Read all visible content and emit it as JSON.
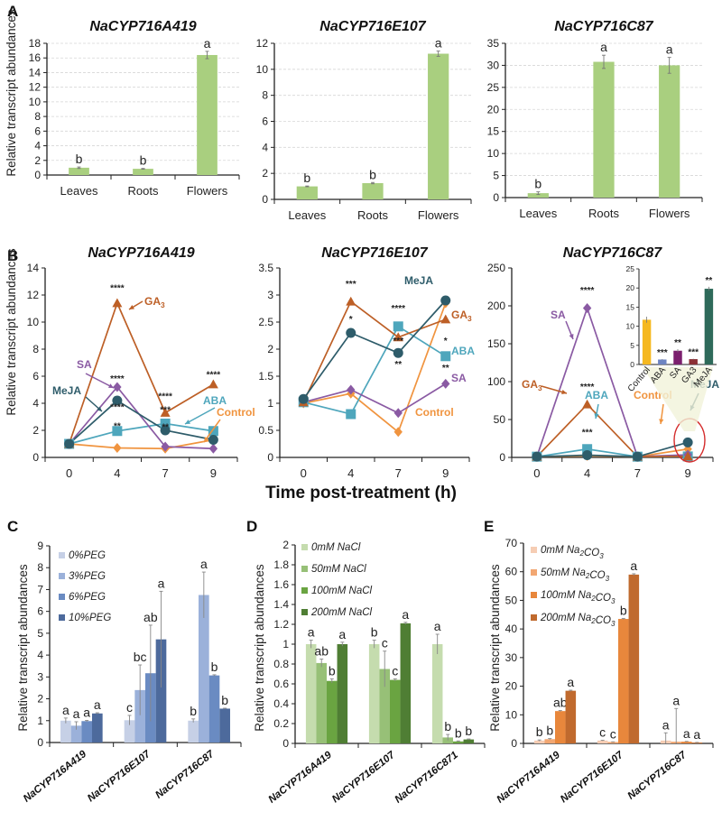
{
  "figure": {
    "panel_letters": [
      "A",
      "B",
      "C",
      "D",
      "E"
    ],
    "b_shared_xlabel": "Time post-treatment (h)",
    "ylabel": "Relative transcript abundances"
  },
  "chart_data": [
    {
      "id": "A1",
      "panel": "A",
      "type": "bar",
      "title": "NaCYP716A419",
      "ylabel": "Relative transcript abundances",
      "categories": [
        "Leaves",
        "Roots",
        "Flowers"
      ],
      "values": [
        1.0,
        0.85,
        16.4
      ],
      "errors": [
        0.1,
        0.05,
        0.5
      ],
      "letters": [
        "b",
        "b",
        "a"
      ],
      "ylim": [
        0,
        18
      ],
      "yticks": [
        0,
        2,
        4,
        6,
        8,
        10,
        12,
        14,
        16,
        18
      ],
      "grid": true,
      "color": "#a9cf7f"
    },
    {
      "id": "A2",
      "panel": "A",
      "type": "bar",
      "title": "NaCYP716E107",
      "categories": [
        "Leaves",
        "Roots",
        "Flowers"
      ],
      "values": [
        1.0,
        1.25,
        11.2
      ],
      "errors": [
        0.03,
        0.05,
        0.2
      ],
      "letters": [
        "b",
        "b",
        "a"
      ],
      "ylim": [
        0,
        12
      ],
      "yticks": [
        0,
        2,
        4,
        6,
        8,
        10,
        12
      ],
      "grid": true,
      "color": "#a9cf7f"
    },
    {
      "id": "A3",
      "panel": "A",
      "type": "bar",
      "title": "NaCYP716C87",
      "categories": [
        "Leaves",
        "Roots",
        "Flowers"
      ],
      "values": [
        1.0,
        30.8,
        30.0
      ],
      "errors": [
        0.3,
        1.5,
        1.8
      ],
      "letters": [
        "b",
        "a",
        "a"
      ],
      "ylim": [
        0,
        35
      ],
      "yticks": [
        0,
        5,
        10,
        15,
        20,
        25,
        30,
        35
      ],
      "grid": true,
      "color": "#a9cf7f"
    },
    {
      "id": "B1",
      "panel": "B",
      "type": "line",
      "title": "NaCYP716A419",
      "ylabel": "Relative transcript abundances",
      "x": [
        "0",
        "4",
        "7",
        "9"
      ],
      "ylim": [
        0,
        14
      ],
      "yticks": [
        0,
        2,
        4,
        6,
        8,
        10,
        12,
        14
      ],
      "series": [
        {
          "name": "Control",
          "color": "#f0943f",
          "marker": "diamond",
          "values": [
            1.0,
            0.7,
            0.65,
            1.3
          ]
        },
        {
          "name": "ABA",
          "color": "#4ea6bc",
          "marker": "square",
          "values": [
            1.0,
            1.95,
            2.5,
            1.95
          ]
        },
        {
          "name": "SA",
          "color": "#8a5aa3",
          "marker": "diamond",
          "values": [
            1.0,
            5.2,
            0.8,
            0.65
          ]
        },
        {
          "name": "GA3",
          "color": "#bd5f26",
          "marker": "triangle",
          "values": [
            1.0,
            11.4,
            3.3,
            5.4
          ]
        },
        {
          "name": "MeJA",
          "color": "#2e5c6a",
          "marker": "circle",
          "values": [
            1.0,
            4.2,
            2.0,
            1.3
          ]
        }
      ],
      "annotations": [
        {
          "x": "4",
          "y": 12.5,
          "text": "****"
        },
        {
          "x": "4",
          "y": 5.8,
          "text": "****"
        },
        {
          "x": "4",
          "y": 3.7,
          "text": "****"
        },
        {
          "x": "4",
          "y": 2.3,
          "text": "**"
        },
        {
          "x": "7",
          "y": 4.5,
          "text": "****"
        },
        {
          "x": "7",
          "y": 3.5,
          "text": "***"
        },
        {
          "x": "7",
          "y": 2.25,
          "text": "**"
        },
        {
          "x": "9",
          "y": 6.1,
          "text": "****"
        }
      ],
      "series_labels": [
        {
          "name": "GA₃",
          "color": "#bd5f26"
        },
        {
          "name": "SA",
          "color": "#8a5aa3"
        },
        {
          "name": "MeJA",
          "color": "#2e5c6a"
        },
        {
          "name": "ABA",
          "color": "#4ea6bc"
        },
        {
          "name": "Control",
          "color": "#f0943f"
        }
      ]
    },
    {
      "id": "B2",
      "panel": "B",
      "type": "line",
      "title": "NaCYP716E107",
      "x": [
        "0",
        "4",
        "7",
        "9"
      ],
      "ylim": [
        0,
        3.5
      ],
      "yticks": [
        0,
        0.5,
        1,
        1.5,
        2,
        2.5,
        3,
        3.5
      ],
      "series": [
        {
          "name": "Control",
          "color": "#f0943f",
          "marker": "diamond",
          "values": [
            1.0,
            1.18,
            0.47,
            2.85
          ]
        },
        {
          "name": "ABA",
          "color": "#4ea6bc",
          "marker": "square",
          "values": [
            1.02,
            0.8,
            2.42,
            1.87
          ]
        },
        {
          "name": "SA",
          "color": "#8a5aa3",
          "marker": "diamond",
          "values": [
            1.02,
            1.25,
            0.82,
            1.36
          ]
        },
        {
          "name": "GA3",
          "color": "#bd5f26",
          "marker": "triangle",
          "values": [
            1.02,
            2.88,
            2.22,
            2.55
          ]
        },
        {
          "name": "MeJA",
          "color": "#2e5c6a",
          "marker": "circle",
          "values": [
            1.08,
            2.3,
            1.93,
            2.9
          ]
        }
      ],
      "annotations": [
        {
          "x": "4",
          "y": 3.2,
          "text": "***"
        },
        {
          "x": "4",
          "y": 2.55,
          "text": "*"
        },
        {
          "x": "7",
          "y": 2.75,
          "text": "****"
        },
        {
          "x": "7",
          "y": 2.15,
          "text": "***"
        },
        {
          "x": "7",
          "y": 1.72,
          "text": "**"
        },
        {
          "x": "9",
          "y": 2.15,
          "text": "*"
        },
        {
          "x": "9",
          "y": 1.65,
          "text": "**"
        }
      ],
      "series_labels": [
        {
          "name": "MeJA",
          "color": "#2e5c6a"
        },
        {
          "name": "GA₃",
          "color": "#bd5f26"
        },
        {
          "name": "ABA",
          "color": "#4ea6bc"
        },
        {
          "name": "SA",
          "color": "#8a5aa3"
        },
        {
          "name": "Control",
          "color": "#f0943f"
        }
      ]
    },
    {
      "id": "B3",
      "panel": "B",
      "type": "line",
      "title": "NaCYP716C87",
      "x": [
        "0",
        "4",
        "7",
        "9"
      ],
      "ylim": [
        0,
        250
      ],
      "yticks": [
        0,
        50,
        100,
        150,
        200,
        250
      ],
      "series": [
        {
          "name": "Control",
          "color": "#f0943f",
          "marker": "diamond",
          "values": [
            1,
            2,
            1,
            11
          ]
        },
        {
          "name": "ABA",
          "color": "#4ea6bc",
          "marker": "square",
          "values": [
            1,
            11,
            1,
            1.3
          ]
        },
        {
          "name": "SA",
          "color": "#8a5aa3",
          "marker": "diamond",
          "values": [
            1,
            197,
            1,
            3.5
          ]
        },
        {
          "name": "GA3",
          "color": "#bd5f26",
          "marker": "triangle",
          "values": [
            1,
            70,
            1,
            1.4
          ]
        },
        {
          "name": "MeJA",
          "color": "#2e5c6a",
          "marker": "circle",
          "values": [
            1,
            3,
            1,
            19.8
          ]
        }
      ],
      "annotations": [
        {
          "x": "4",
          "y": 220,
          "text": "****"
        },
        {
          "x": "4",
          "y": 93,
          "text": "****"
        },
        {
          "x": "4",
          "y": 33,
          "text": "***"
        }
      ],
      "series_labels": [
        {
          "name": "SA",
          "color": "#8a5aa3"
        },
        {
          "name": "GA₃",
          "color": "#bd5f26"
        },
        {
          "name": "ABA",
          "color": "#4ea6bc"
        },
        {
          "name": "Control",
          "color": "#f0943f"
        },
        {
          "name": "MeJA",
          "color": "#2e5c6a"
        }
      ],
      "inset": {
        "type": "bar",
        "categories": [
          "Control",
          "ABA",
          "SA",
          "GA3",
          "MeJA"
        ],
        "values": [
          11.7,
          1.3,
          3.6,
          1.4,
          19.8
        ],
        "errors": [
          0.8,
          0.1,
          0.4,
          0.1,
          0.5
        ],
        "colors": [
          "#f5b820",
          "#6d84c2",
          "#7b1f6e",
          "#8a2f36",
          "#2e6a5a"
        ],
        "significance": [
          "",
          "***",
          "**",
          "***",
          "**"
        ],
        "ylim": [
          0,
          25
        ],
        "yticks": [
          0,
          5,
          10,
          15,
          20,
          25
        ]
      }
    },
    {
      "id": "C",
      "panel": "C",
      "type": "bar",
      "ylabel": "Relative transcript abundances",
      "categories": [
        "NaCYP716A419",
        "NaCYP716E107",
        "NaCYP716C87"
      ],
      "series": [
        {
          "name": "0%PEG",
          "color": "#c6d0e6",
          "values": [
            1.0,
            1.02,
            1.0
          ],
          "errors": [
            0.12,
            0.22,
            0.08
          ],
          "letters": [
            "a",
            "c",
            "b"
          ]
        },
        {
          "name": "3%PEG",
          "color": "#9bb1da",
          "values": [
            0.77,
            2.4,
            6.75
          ],
          "errors": [
            0.18,
            1.15,
            1.05
          ],
          "letters": [
            "a",
            "bc",
            "a"
          ]
        },
        {
          "name": "6%PEG",
          "color": "#6a8bc2",
          "values": [
            0.98,
            3.17,
            3.07
          ],
          "errors": [
            0.03,
            2.2,
            0.03
          ],
          "letters": [
            "a",
            "ab",
            "b"
          ]
        },
        {
          "name": "10%PEG",
          "color": "#4d6a9c",
          "values": [
            1.33,
            4.72,
            1.55
          ],
          "errors": [
            0.03,
            2.2,
            0.02
          ],
          "letters": [
            "a",
            "a",
            "b"
          ]
        }
      ],
      "ylim": [
        0,
        9
      ],
      "yticks": [
        0,
        1,
        2,
        3,
        4,
        5,
        6,
        7,
        8,
        9
      ],
      "legend": "top-left"
    },
    {
      "id": "D",
      "panel": "D",
      "type": "bar",
      "ylabel": "Relative transcript abundances",
      "categories": [
        "NaCYP716A419",
        "NaCYP716E107",
        "NaCYP716C871"
      ],
      "series": [
        {
          "name": "0mM NaCl",
          "color": "#c5dcae",
          "values": [
            1.0,
            1.0,
            1.0
          ],
          "errors": [
            0.04,
            0.04,
            0.1
          ],
          "letters": [
            "a",
            "b",
            "a"
          ]
        },
        {
          "name": "50mM NaCl",
          "color": "#97c077",
          "values": [
            0.81,
            0.75,
            0.06
          ],
          "errors": [
            0.04,
            0.18,
            0.03
          ],
          "letters": [
            "ab",
            "c",
            "b"
          ]
        },
        {
          "name": "100mM NaCl",
          "color": "#6aa441",
          "values": [
            0.63,
            0.64,
            0.02
          ],
          "errors": [
            0.02,
            0.01,
            0.005
          ],
          "letters": [
            "b",
            "c",
            "b"
          ]
        },
        {
          "name": "200mM NaCl",
          "color": "#4f7e34",
          "values": [
            1.0,
            1.21,
            0.04
          ],
          "errors": [
            0.02,
            0.01,
            0.005
          ],
          "letters": [
            "a",
            "a",
            "b"
          ]
        }
      ],
      "ylim": [
        0,
        2
      ],
      "yticks": [
        0,
        0.2,
        0.4,
        0.6,
        0.8,
        1,
        1.2,
        1.4,
        1.6,
        1.8,
        2
      ],
      "legend": "top-left"
    },
    {
      "id": "E",
      "panel": "E",
      "type": "bar",
      "ylabel": "Relative transcript abundances",
      "categories": [
        "NaCYP716A419",
        "NaCYP716E107",
        "NaCYP716C87"
      ],
      "series": [
        {
          "name": "0mM Na₂CO₃",
          "color": "#f6cdb4",
          "values": [
            1.0,
            1.0,
            1.0
          ],
          "errors": [
            0.2,
            0.1,
            2.7
          ],
          "letters": [
            "b",
            "c",
            "a"
          ]
        },
        {
          "name": "50mM Na₂CO₃",
          "color": "#f2a772",
          "values": [
            1.5,
            0.5,
            0.6
          ],
          "errors": [
            0.2,
            0.05,
            11.6
          ],
          "letters": [
            "b",
            "c",
            "a"
          ]
        },
        {
          "name": "100mM Na₂CO₃",
          "color": "#e8873c",
          "values": [
            11.3,
            43.5,
            0.6
          ],
          "errors": [
            0.2,
            0.2,
            0.1
          ],
          "letters": [
            "ab",
            "b",
            "a"
          ]
        },
        {
          "name": "200mM Na₂CO₃",
          "color": "#c06a2e",
          "values": [
            18.4,
            59.0,
            0.3
          ],
          "errors": [
            0.2,
            0.3,
            0.05
          ],
          "letters": [
            "a",
            "a",
            "a"
          ]
        }
      ],
      "ylim": [
        0,
        70
      ],
      "yticks": [
        0,
        10,
        20,
        30,
        40,
        50,
        60,
        70
      ],
      "legend": "top-left"
    }
  ]
}
